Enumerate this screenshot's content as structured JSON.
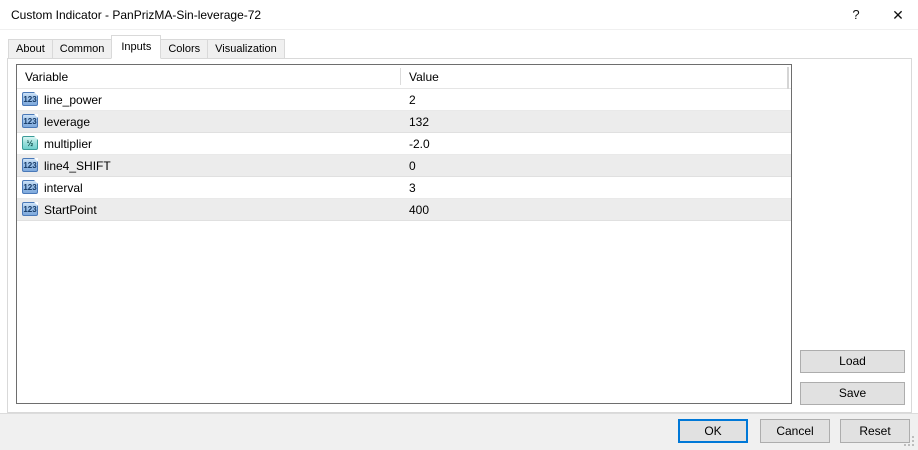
{
  "window": {
    "title": "Custom Indicator - PanPrizMA-Sin-leverage-72",
    "help_glyph": "?",
    "close_glyph": "✕"
  },
  "tabs": [
    {
      "label": "About",
      "active": false
    },
    {
      "label": "Common",
      "active": false
    },
    {
      "label": "Inputs",
      "active": true
    },
    {
      "label": "Colors",
      "active": false
    },
    {
      "label": "Visualization",
      "active": false
    }
  ],
  "table": {
    "columns": [
      "Variable",
      "Value"
    ],
    "rows": [
      {
        "icon": "integer",
        "icon_text": "123",
        "name": "line_power",
        "value": "2"
      },
      {
        "icon": "integer",
        "icon_text": "123",
        "name": "leverage",
        "value": "132"
      },
      {
        "icon": "double",
        "icon_text": "½",
        "name": "multiplier",
        "value": "-2.0"
      },
      {
        "icon": "integer",
        "icon_text": "123",
        "name": "line4_SHIFT",
        "value": "0"
      },
      {
        "icon": "integer",
        "icon_text": "123",
        "name": "interval",
        "value": "3"
      },
      {
        "icon": "integer",
        "icon_text": "123",
        "name": "StartPoint",
        "value": "400"
      }
    ]
  },
  "side_buttons": {
    "load": "Load",
    "save": "Save"
  },
  "footer_buttons": {
    "ok": "OK",
    "cancel": "Cancel",
    "reset": "Reset"
  },
  "colors": {
    "accent_focus": "#0078d7",
    "row_alt": "#ececec",
    "table_border": "#6e6e6e",
    "footer_bg": "#f0f0f0",
    "button_bg": "#e1e1e1",
    "icon_integer": "#7fa9dc",
    "icon_double": "#6fd0cd"
  }
}
